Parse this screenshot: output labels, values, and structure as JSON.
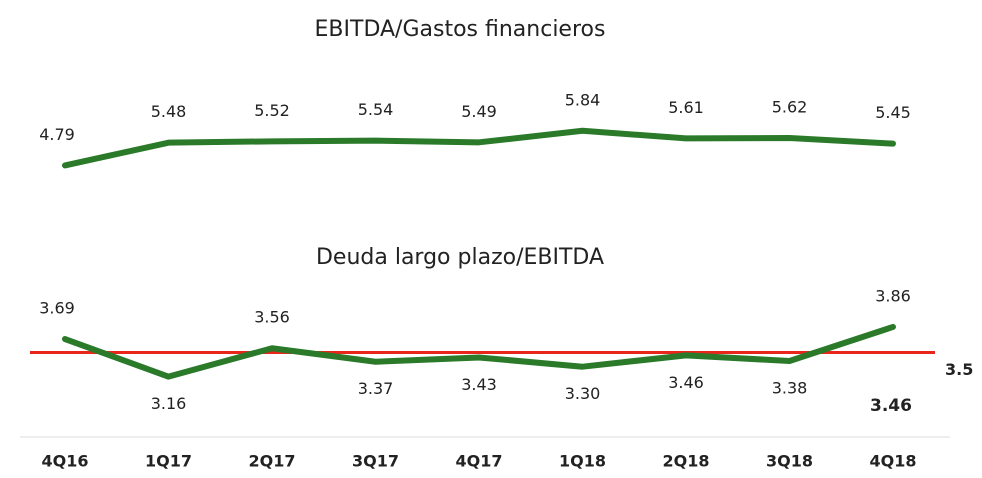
{
  "chart_data": [
    {
      "type": "line",
      "title": "EBITDA/Gastos financieros",
      "values": [
        4.79,
        5.48,
        5.52,
        5.54,
        5.49,
        5.84,
        5.61,
        5.62,
        5.45
      ],
      "color": "#2a7a2a",
      "ylim": [
        4.5,
        7
      ]
    },
    {
      "type": "line",
      "title": "Deuda largo plazo/EBITDA",
      "categories": [
        "4Q16",
        "1Q17",
        "2Q17",
        "3Q17",
        "4Q17",
        "1Q18",
        "2Q18",
        "3Q18",
        "4Q18"
      ],
      "values": [
        3.69,
        3.16,
        3.56,
        3.37,
        3.43,
        3.3,
        3.46,
        3.38,
        3.86
      ],
      "value_labels": [
        "3.69",
        "3.16",
        "3.56",
        "3.37",
        "3.43",
        "3.30",
        "3.46",
        "3.38",
        "3.86"
      ],
      "color": "#2a7a2a",
      "ylim": [
        3,
        4.2
      ],
      "reference_line": {
        "value": 3.5,
        "color": "#e8261c"
      },
      "annotation": {
        "value": 3.46,
        "color": "#3d7a1a"
      }
    }
  ]
}
